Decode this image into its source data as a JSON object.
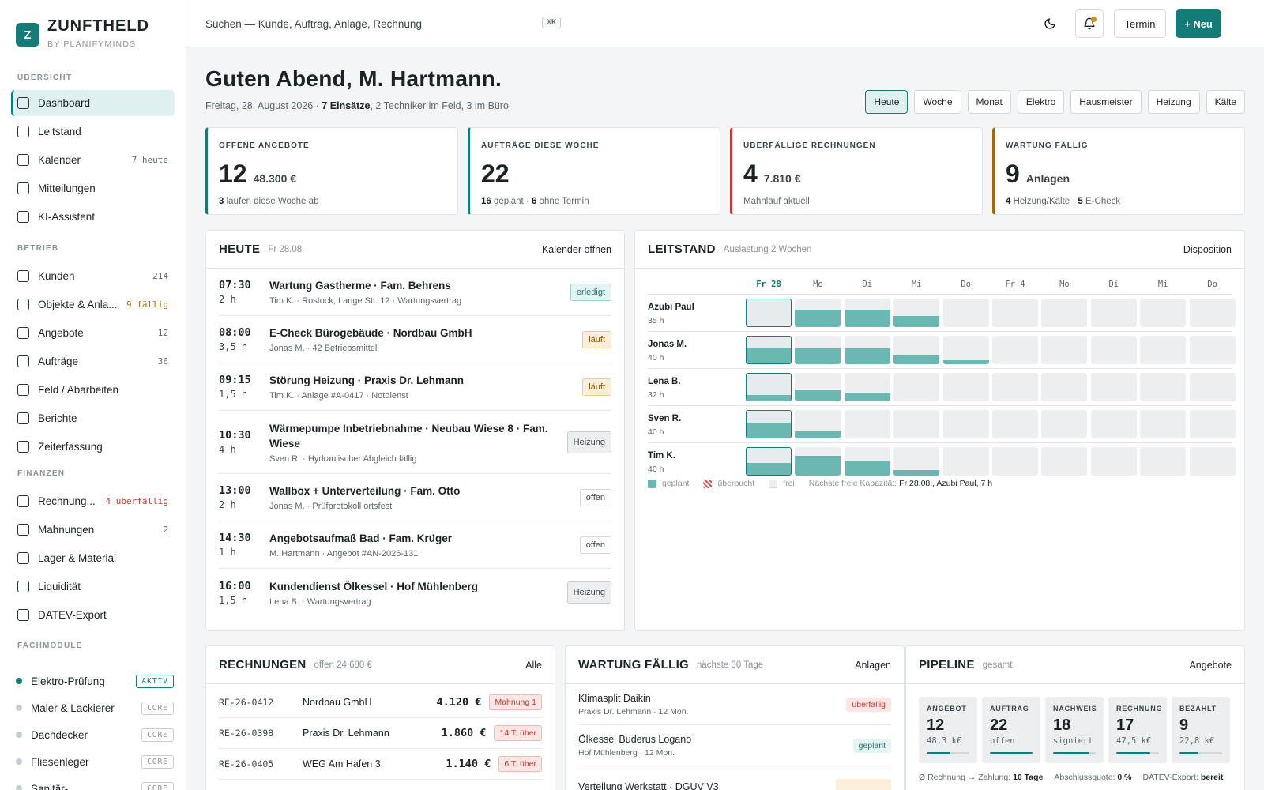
{
  "brand": {
    "logo": "Z",
    "name": "ZUNFTHELD",
    "sub": "BY PLANIFYMINDS"
  },
  "sidebar": {
    "sections": [
      "ÜBERSICHT",
      "BETRIEB",
      "FINANZEN",
      "FACHMODULE"
    ],
    "overview": [
      {
        "label": "Dashboard",
        "count": ""
      },
      {
        "label": "Leitstand",
        "count": ""
      },
      {
        "label": "Kalender",
        "count": "7 heute"
      },
      {
        "label": "Mitteilungen",
        "count": ""
      },
      {
        "label": "KI-Assistent",
        "count": ""
      }
    ],
    "betrieb": [
      {
        "label": "Kunden",
        "count": "214"
      },
      {
        "label": "Objekte & Anla...",
        "count": "9 fällig"
      },
      {
        "label": "Angebote",
        "count": "12"
      },
      {
        "label": "Aufträge",
        "count": "36"
      },
      {
        "label": "Feld / Abarbeiten",
        "count": ""
      },
      {
        "label": "Berichte",
        "count": ""
      },
      {
        "label": "Zeiterfassung",
        "count": ""
      }
    ],
    "finanzen": [
      {
        "label": "Rechnung...",
        "count": "4 überfällig"
      },
      {
        "label": "Mahnungen",
        "count": "2"
      },
      {
        "label": "Lager & Material",
        "count": ""
      },
      {
        "label": "Liquidität",
        "count": ""
      },
      {
        "label": "DATEV-Export",
        "count": ""
      }
    ],
    "modules": [
      {
        "label": "Elektro-Prüfung",
        "badge": "AKTIV"
      },
      {
        "label": "Maler & Lackierer",
        "badge": "CORE"
      },
      {
        "label": "Dachdecker",
        "badge": "CORE"
      },
      {
        "label": "Fliesenleger",
        "badge": "CORE"
      },
      {
        "label": "Sanitär-",
        "badge": "CORE"
      }
    ]
  },
  "topbar": {
    "search_placeholder": "Suchen — Kunde, Auftrag, Anlage, Rechnung",
    "shortcut": "⌘K",
    "termin_label": "Termin",
    "new_label": "+ Neu",
    "colors": {
      "accent": "#137c78",
      "notification": "#d49300"
    }
  },
  "header": {
    "greeting": "Guten Abend, M. Hartmann.",
    "date": "Freitag, 28. August 2026 · ",
    "einsaetze": "7 Einsätze",
    "rest": ", 2 Techniker im Feld, 3 im Büro",
    "filters": [
      "Heute",
      "Woche",
      "Monat",
      "Elektro",
      "Hausmeister",
      "Heizung",
      "Kälte"
    ]
  },
  "kpis": [
    {
      "label": "OFFENE ANGEBOTE",
      "num": "12",
      "unit": "48.300 €",
      "foot_b": "3",
      "foot": " laufen diese Woche ab",
      "color": "#137c78"
    },
    {
      "label": "AUFTRÄGE DIESE WOCHE",
      "num": "22",
      "unit": "",
      "foot_b": "16",
      "foot": " geplant · ",
      "foot_b2": "6",
      "foot2": " ohne Termin",
      "color": "#137c78"
    },
    {
      "label": "ÜBERFÄLLIGE RECHNUNGEN",
      "num": "4",
      "unit": "7.810 €",
      "foot_b": "",
      "foot": "Mahnlauf aktuell",
      "color": "#c13a33"
    },
    {
      "label": "WARTUNG FÄLLIG",
      "num": "9",
      "unit": "Anlagen",
      "foot_b": "4",
      "foot": " Heizung/Kälte · ",
      "foot_b2": "5",
      "foot2": " E-Check",
      "color": "#a86a00"
    }
  ],
  "heute": {
    "title": "HEUTE",
    "sub": "Fr 28.08.",
    "link": "Kalender öffnen",
    "items": [
      {
        "time": "07:30",
        "dur": "2 h",
        "title": "Wartung Gastherme · Fam. Behrens",
        "meta": "Tim K. · Rostock, Lange Str. 12 · Wartungsvertrag",
        "tag": "erledigt",
        "kind": "done"
      },
      {
        "time": "08:00",
        "dur": "3,5 h",
        "title": "E-Check Bürogebäude · Nordbau GmbH",
        "meta": "Jonas M. · 42 Betriebsmittel",
        "tag": "läuft",
        "kind": "run"
      },
      {
        "time": "09:15",
        "dur": "1,5 h",
        "title": "Störung Heizung · Praxis Dr. Lehmann",
        "meta": "Tim K. · Anlage #A-0417 · Notdienst",
        "tag": "läuft",
        "kind": "run"
      },
      {
        "time": "10:30",
        "dur": "4 h",
        "title": "Wärmepumpe Inbetriebnahme · Neubau Wiese 8 · Fam. Wiese",
        "meta": "Sven R. · Hydraulischer Abgleich fällig",
        "tag": "Heizung",
        "kind": "grey"
      },
      {
        "time": "13:00",
        "dur": "2 h",
        "title": "Wallbox + Unterverteilung · Fam. Otto",
        "meta": "Jonas M. · Prüfprotokoll ortsfest",
        "tag": "offen",
        "kind": "open"
      },
      {
        "time": "14:30",
        "dur": "1 h",
        "title": "Angebotsaufmaß Bad · Fam. Krüger",
        "meta": "M. Hartmann · Angebot #AN-2026-131",
        "tag": "offen",
        "kind": "open"
      },
      {
        "time": "16:00",
        "dur": "1,5 h",
        "title": "Kundendienst Ölkessel · Hof Mühlenberg",
        "meta": "Lena B. · Wartungsvertrag",
        "tag": "Heizung",
        "kind": "grey"
      }
    ]
  },
  "leitstand": {
    "title": "LEITSTAND",
    "sub": "Auslastung 2 Wochen",
    "link": "Disposition",
    "days": [
      "Fr 28",
      "Mo",
      "Di",
      "Mi",
      "Do",
      "Fr 4",
      "Mo",
      "Di",
      "Mi",
      "Do"
    ],
    "rows": [
      {
        "name": "Azubi Paul",
        "hours": "35 h",
        "load": [
          0,
          0.6,
          0.6,
          0.4,
          0,
          0,
          0,
          0,
          0,
          0
        ]
      },
      {
        "name": "Jonas M.",
        "hours": "40 h",
        "load": [
          0.6,
          0.55,
          0.55,
          0.3,
          0.15,
          0,
          0,
          0,
          0,
          0
        ]
      },
      {
        "name": "Lena B.",
        "hours": "32 h",
        "load": [
          0.2,
          0.4,
          0.3,
          0,
          0,
          0,
          0,
          0,
          0,
          0
        ]
      },
      {
        "name": "Sven R.",
        "hours": "40 h",
        "load": [
          0.55,
          0.25,
          0,
          0,
          0,
          0,
          0,
          0,
          0,
          0
        ]
      },
      {
        "name": "Tim K.",
        "hours": "40 h",
        "load": [
          0.45,
          0.7,
          0.5,
          0.2,
          0,
          0,
          0,
          0,
          0,
          0
        ]
      }
    ],
    "legend": {
      "planned": "geplant",
      "over": "überbucht",
      "free": "frei",
      "next_label": "Nächste freie Kapazität:",
      "next_value": "Fr 28.08., Azubi Paul, 7 h"
    }
  },
  "rechnungen": {
    "title": "RECHNUNGEN",
    "sub": "offen 24.680 €",
    "link": "Alle",
    "rows": [
      {
        "no": "RE-26-0412",
        "cust": "Nordbau GmbH",
        "amt": "4.120 €",
        "tag": "Mahnung 1"
      },
      {
        "no": "RE-26-0398",
        "cust": "Praxis Dr. Lehmann",
        "amt": "1.860 €",
        "tag": "14 T. über"
      },
      {
        "no": "RE-26-0405",
        "cust": "WEG Am Hafen 3",
        "amt": "1.140 €",
        "tag": "6 T. über"
      }
    ]
  },
  "wartung": {
    "title": "WARTUNG FÄLLIG",
    "sub": "nächste 30 Tage",
    "link": "Anlagen",
    "rows": [
      {
        "title": "Klimasplit Daikin",
        "meta": "Praxis Dr. Lehmann · 12 Mon.",
        "tag": "überfällig",
        "kind": "bad"
      },
      {
        "title": "Ölkessel Buderus Logano",
        "meta": "Hof Mühlenberg · 12 Mon.",
        "tag": "geplant",
        "kind": "ok"
      },
      {
        "title": "Verteilung Werkstatt · DGUV V3",
        "meta": "",
        "tag": "",
        "kind": "warn"
      }
    ]
  },
  "pipeline": {
    "title": "PIPELINE",
    "sub": "gesamt",
    "link": "Angebote",
    "stages": [
      {
        "label": "ANGEBOT",
        "num": "12",
        "sub": "48,3 k€",
        "fill": 0.55
      },
      {
        "label": "AUFTRAG",
        "num": "22",
        "sub": "offen",
        "fill": 1.0
      },
      {
        "label": "NACHWEIS",
        "num": "18",
        "sub": "signiert",
        "fill": 0.85
      },
      {
        "label": "RECHNUNG",
        "num": "17",
        "sub": "47,5 k€",
        "fill": 0.8
      },
      {
        "label": "BEZAHLT",
        "num": "9",
        "sub": "22,8 k€",
        "fill": 0.45
      }
    ],
    "foot": [
      {
        "label": "Ø Rechnung → Zahlung:",
        "value": "10 Tage"
      },
      {
        "label": "Abschlussquote:",
        "value": "0 %"
      },
      {
        "label": "DATEV-Export:",
        "value": "bereit"
      }
    ]
  }
}
